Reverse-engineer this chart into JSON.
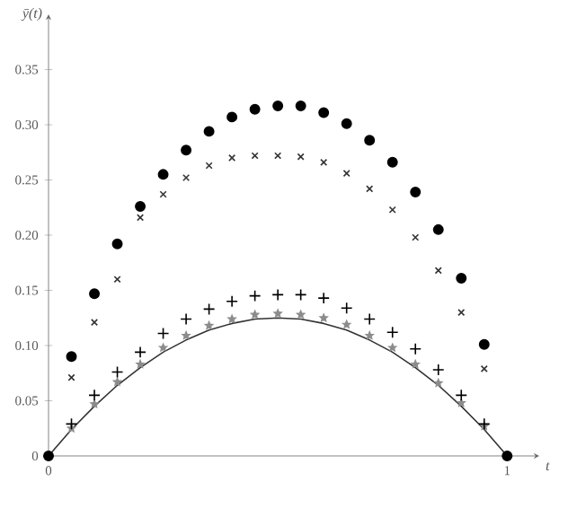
{
  "chart_data": {
    "type": "scatter",
    "xlabel": "t",
    "ylabel": "ȳ(t)",
    "xlim": [
      0,
      1.07
    ],
    "ylim": [
      0,
      0.4
    ],
    "xticks": [
      0,
      1
    ],
    "yticks": [
      0,
      0.05,
      {
        "value": 0.1,
        "label": "0.10"
      },
      0.15,
      {
        "value": 0.2,
        "label": "0.20"
      },
      0.25,
      {
        "value": 0.3,
        "label": "0.30"
      },
      0.35
    ],
    "series": [
      {
        "type": "line",
        "color": "#333333",
        "marker": "none",
        "line_style": "solid",
        "x": [
          0,
          0.05,
          0.1,
          0.15,
          0.2,
          0.25,
          0.3,
          0.35,
          0.4,
          0.45,
          0.5,
          0.55,
          0.6,
          0.65,
          0.7,
          0.75,
          0.8,
          0.85,
          0.9,
          0.95,
          1
        ],
        "values": [
          0,
          0.024,
          0.045,
          0.064,
          0.08,
          0.094,
          0.105,
          0.114,
          0.12,
          0.124,
          0.125,
          0.124,
          0.12,
          0.114,
          0.105,
          0.094,
          0.08,
          0.064,
          0.045,
          0.024,
          0
        ]
      },
      {
        "color": "#8c8c8c",
        "marker": "star",
        "x": [
          0.05,
          0.1,
          0.15,
          0.2,
          0.25,
          0.3,
          0.35,
          0.4,
          0.45,
          0.5,
          0.55,
          0.6,
          0.65,
          0.7,
          0.75,
          0.8,
          0.85,
          0.9,
          0.95
        ],
        "values": [
          0.025,
          0.047,
          0.067,
          0.083,
          0.098,
          0.109,
          0.118,
          0.124,
          0.128,
          0.129,
          0.128,
          0.125,
          0.119,
          0.109,
          0.098,
          0.083,
          0.066,
          0.048,
          0.027
        ]
      },
      {
        "color": "#000000",
        "marker": "plus",
        "x": [
          0.05,
          0.1,
          0.15,
          0.2,
          0.25,
          0.3,
          0.35,
          0.4,
          0.45,
          0.5,
          0.55,
          0.6,
          0.65,
          0.7,
          0.75,
          0.8,
          0.85,
          0.9,
          0.95
        ],
        "values": [
          0.029,
          0.055,
          0.076,
          0.094,
          0.111,
          0.124,
          0.133,
          0.14,
          0.145,
          0.146,
          0.146,
          0.143,
          0.134,
          0.124,
          0.112,
          0.097,
          0.078,
          0.055,
          0.029
        ]
      },
      {
        "color": "#333333",
        "marker": "cross",
        "x": [
          0.05,
          0.1,
          0.15,
          0.2,
          0.25,
          0.3,
          0.35,
          0.4,
          0.45,
          0.5,
          0.55,
          0.6,
          0.65,
          0.7,
          0.75,
          0.8,
          0.85,
          0.9,
          0.95
        ],
        "values": [
          0.071,
          0.121,
          0.16,
          0.216,
          0.237,
          0.252,
          0.263,
          0.27,
          0.272,
          0.272,
          0.271,
          0.266,
          0.256,
          0.242,
          0.223,
          0.198,
          0.168,
          0.13,
          0.079
        ]
      },
      {
        "color": "#000000",
        "marker": "circle",
        "x": [
          0,
          0.05,
          0.1,
          0.15,
          0.2,
          0.25,
          0.3,
          0.35,
          0.4,
          0.45,
          0.5,
          0.55,
          0.6,
          0.65,
          0.7,
          0.75,
          0.8,
          0.85,
          0.9,
          0.95,
          1
        ],
        "values": [
          0,
          0.09,
          0.147,
          0.192,
          0.226,
          0.255,
          0.277,
          0.294,
          0.307,
          0.314,
          0.317,
          0.317,
          0.311,
          0.301,
          0.286,
          0.266,
          0.239,
          0.205,
          0.161,
          0.101,
          0
        ]
      }
    ]
  }
}
